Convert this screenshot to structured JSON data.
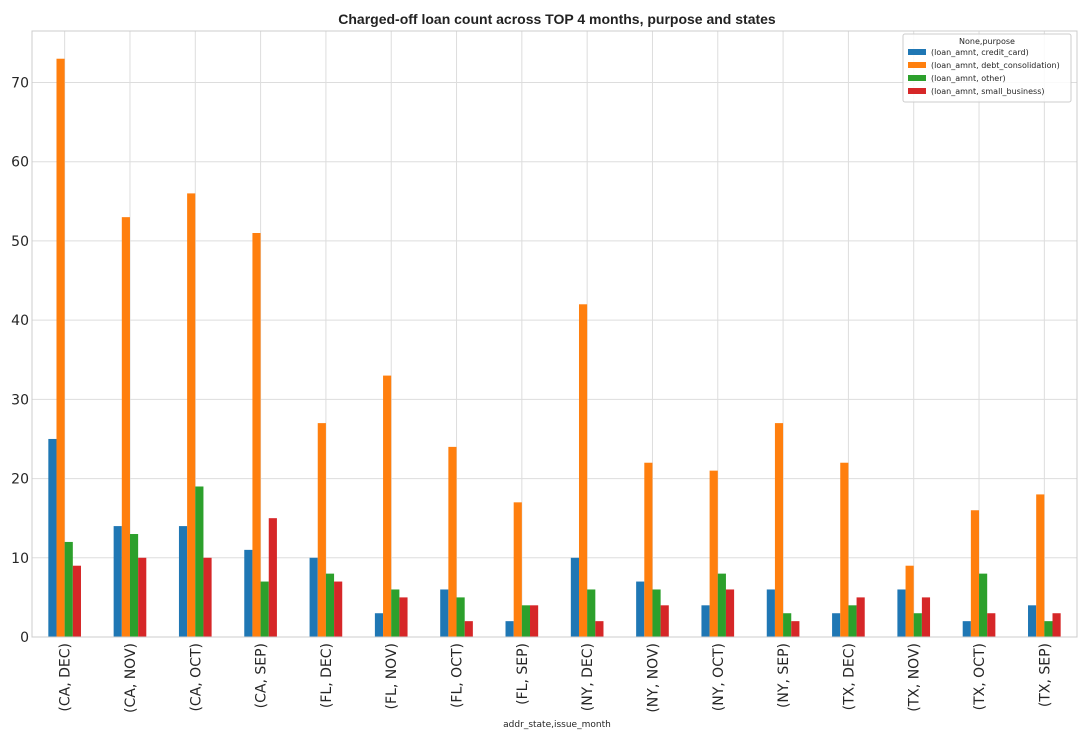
{
  "chart_data": {
    "type": "bar",
    "title": "Charged-off loan count across TOP 4 months, purpose and states",
    "xlabel": "addr_state,issue_month",
    "ylabel": "",
    "ylim": [
      0,
      76.5
    ],
    "yticks": [
      0,
      10,
      20,
      30,
      40,
      50,
      60,
      70
    ],
    "grid": true,
    "legend_position": "top-right",
    "legend_title": "None,purpose",
    "categories": [
      "(CA, DEC)",
      "(CA, NOV)",
      "(CA, OCT)",
      "(CA, SEP)",
      "(FL, DEC)",
      "(FL, NOV)",
      "(FL, OCT)",
      "(FL, SEP)",
      "(NY, DEC)",
      "(NY, NOV)",
      "(NY, OCT)",
      "(NY, SEP)",
      "(TX, DEC)",
      "(TX, NOV)",
      "(TX, OCT)",
      "(TX, SEP)"
    ],
    "series": [
      {
        "name": "(loan_amnt, credit_card)",
        "color": "#1f77b4",
        "values": [
          25,
          14,
          14,
          11,
          10,
          3,
          6,
          2,
          10,
          7,
          4,
          6,
          3,
          6,
          2,
          4
        ]
      },
      {
        "name": "(loan_amnt, debt_consolidation)",
        "color": "#ff7f0e",
        "values": [
          73,
          53,
          56,
          51,
          27,
          33,
          24,
          17,
          42,
          22,
          21,
          27,
          22,
          9,
          16,
          18
        ]
      },
      {
        "name": "(loan_amnt, other)",
        "color": "#2ca02c",
        "values": [
          12,
          13,
          19,
          7,
          8,
          6,
          5,
          4,
          6,
          6,
          8,
          3,
          4,
          3,
          8,
          2
        ]
      },
      {
        "name": "(loan_amnt, small_business)",
        "color": "#d62728",
        "values": [
          9,
          10,
          10,
          15,
          7,
          5,
          2,
          4,
          2,
          4,
          6,
          2,
          5,
          5,
          3,
          3
        ]
      }
    ]
  }
}
